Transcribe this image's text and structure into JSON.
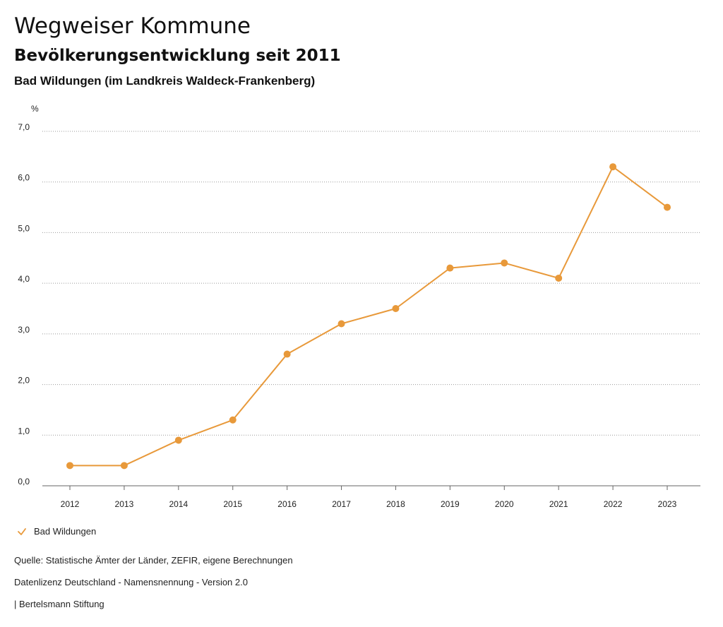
{
  "header": {
    "title": "Wegweiser Kommune",
    "subtitle": "Bevölkerungsentwicklung seit 2011",
    "region": "Bad Wildungen (im Landkreis Waldeck-Frankenberg)"
  },
  "colors": {
    "series": "#E8993A",
    "grid": "#999999",
    "axis": "#666666"
  },
  "chart_data": {
    "type": "line",
    "ylabel": "%",
    "xlabel": "",
    "x": [
      "2012",
      "2013",
      "2014",
      "2015",
      "2016",
      "2017",
      "2018",
      "2019",
      "2020",
      "2021",
      "2022",
      "2023"
    ],
    "ylim": [
      0,
      7
    ],
    "yticks": [
      0,
      1,
      2,
      3,
      4,
      5,
      6,
      7
    ],
    "ytick_labels": [
      "0,0",
      "1,0",
      "2,0",
      "3,0",
      "4,0",
      "5,0",
      "6,0",
      "7,0"
    ],
    "grid": true,
    "legend_position": "bottom-left",
    "series": [
      {
        "name": "Bad Wildungen",
        "values": [
          0.4,
          0.4,
          0.9,
          1.3,
          2.6,
          3.2,
          3.5,
          4.3,
          4.4,
          4.1,
          6.3,
          5.5
        ]
      }
    ]
  },
  "legend": {
    "items": [
      {
        "label": "Bad Wildungen",
        "icon": "check-icon"
      }
    ]
  },
  "footer": {
    "source": "Quelle: Statistische Ämter der Länder, ZEFIR, eigene Berechnungen",
    "license": "Datenlizenz Deutschland - Namensnennung - Version 2.0",
    "publisher": "| Bertelsmann Stiftung"
  }
}
